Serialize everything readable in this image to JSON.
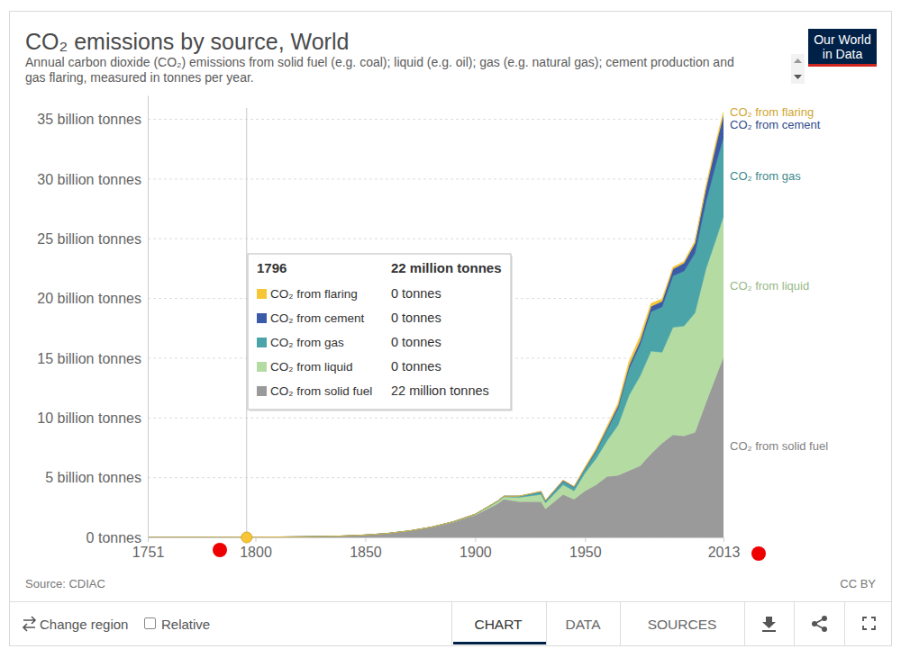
{
  "chart_data": {
    "type": "area",
    "stacked": true,
    "grid": true,
    "title": "CO₂ emissions by source, World",
    "subtitle": "Annual carbon dioxide (CO₂) emissions from solid fuel (e.g. coal); liquid (e.g. oil); gas (e.g. natural gas); cement production and gas flaring, measured in tonnes per year.",
    "logo": [
      "Our World",
      "in Data"
    ],
    "source": "Source: CDIAC",
    "license": "CC BY",
    "controls": [
      "Change region",
      "Relative"
    ],
    "tabs": [
      "CHART",
      "DATA",
      "SOURCES"
    ],
    "x": [
      1751,
      1760,
      1770,
      1780,
      1790,
      1796,
      1800,
      1810,
      1820,
      1830,
      1840,
      1850,
      1860,
      1870,
      1880,
      1890,
      1900,
      1910,
      1913,
      1920,
      1930,
      1932,
      1940,
      1945,
      1950,
      1955,
      1960,
      1965,
      1970,
      1975,
      1980,
      1985,
      1990,
      1995,
      2000,
      2005,
      2010,
      2013
    ],
    "xlim": [
      1751,
      2013
    ],
    "xticks": [
      1751,
      1800,
      1850,
      1900,
      1950,
      2013
    ],
    "ylim": [
      0,
      37
    ],
    "yticks": [
      {
        "value": 0,
        "label": "0 tonnes"
      },
      {
        "value": 5,
        "label": "5 billion tonnes"
      },
      {
        "value": 10,
        "label": "10 billion tonnes"
      },
      {
        "value": 15,
        "label": "15 billion tonnes"
      },
      {
        "value": 20,
        "label": "20 billion tonnes"
      },
      {
        "value": 25,
        "label": "25 billion tonnes"
      },
      {
        "value": 30,
        "label": "30 billion tonnes"
      },
      {
        "value": 35,
        "label": "35 billion tonnes"
      }
    ],
    "series": [
      {
        "name": "CO₂ from solid fuel",
        "color": "#9a9a9a",
        "values": [
          0.01,
          0.012,
          0.014,
          0.017,
          0.02,
          0.022,
          0.029,
          0.035,
          0.05,
          0.08,
          0.12,
          0.2,
          0.33,
          0.54,
          0.84,
          1.27,
          1.86,
          2.8,
          3.2,
          3.0,
          3.0,
          2.4,
          3.6,
          3.2,
          3.9,
          4.4,
          5.1,
          5.2,
          5.6,
          6.0,
          7.0,
          7.9,
          8.6,
          8.5,
          8.8,
          11.3,
          13.7,
          15.1
        ]
      },
      {
        "name": "CO₂ from liquid",
        "color": "#b4dca2",
        "values": [
          0,
          0,
          0,
          0,
          0,
          0,
          0,
          0,
          0,
          0,
          0,
          0,
          0,
          0.002,
          0.015,
          0.03,
          0.06,
          0.18,
          0.2,
          0.35,
          0.6,
          0.5,
          0.8,
          0.7,
          1.5,
          2.2,
          3.0,
          4.2,
          6.3,
          7.5,
          8.6,
          7.6,
          9.0,
          9.2,
          10.0,
          11.2,
          11.5,
          11.8
        ]
      },
      {
        "name": "CO₂ from gas",
        "color": "#4aa4a8",
        "values": [
          0,
          0,
          0,
          0,
          0,
          0,
          0,
          0,
          0,
          0,
          0,
          0,
          0,
          0,
          0,
          0.01,
          0.02,
          0.04,
          0.05,
          0.1,
          0.2,
          0.15,
          0.3,
          0.3,
          0.35,
          0.6,
          0.9,
          1.4,
          2.2,
          2.6,
          3.3,
          3.8,
          4.3,
          4.6,
          5.0,
          5.6,
          6.4,
          6.6
        ]
      },
      {
        "name": "CO₂ from cement",
        "color": "#3b5aa8",
        "values": [
          0,
          0,
          0,
          0,
          0,
          0,
          0,
          0,
          0,
          0,
          0,
          0,
          0,
          0,
          0,
          0,
          0,
          0,
          0,
          0,
          0.05,
          0.04,
          0.08,
          0.05,
          0.07,
          0.12,
          0.16,
          0.22,
          0.3,
          0.35,
          0.44,
          0.46,
          0.57,
          0.66,
          0.83,
          1.1,
          1.6,
          1.9
        ]
      },
      {
        "name": "CO₂ from flaring",
        "color": "#f7c636",
        "values": [
          0,
          0,
          0,
          0,
          0,
          0,
          0,
          0,
          0,
          0,
          0,
          0,
          0,
          0,
          0,
          0,
          0,
          0,
          0,
          0,
          0,
          0,
          0,
          0,
          0.09,
          0.12,
          0.15,
          0.2,
          0.33,
          0.36,
          0.25,
          0.2,
          0.15,
          0.14,
          0.17,
          0.2,
          0.25,
          0.23
        ]
      }
    ],
    "tooltip": {
      "x": 1796,
      "total": {
        "value": 0.022,
        "label": "22 million tonnes"
      },
      "values": [
        0.022,
        0,
        0,
        0,
        0
      ],
      "value_labels": [
        "22 million tonnes",
        "0 tonnes",
        "0 tonnes",
        "0 tonnes",
        "0 tonnes"
      ]
    }
  }
}
